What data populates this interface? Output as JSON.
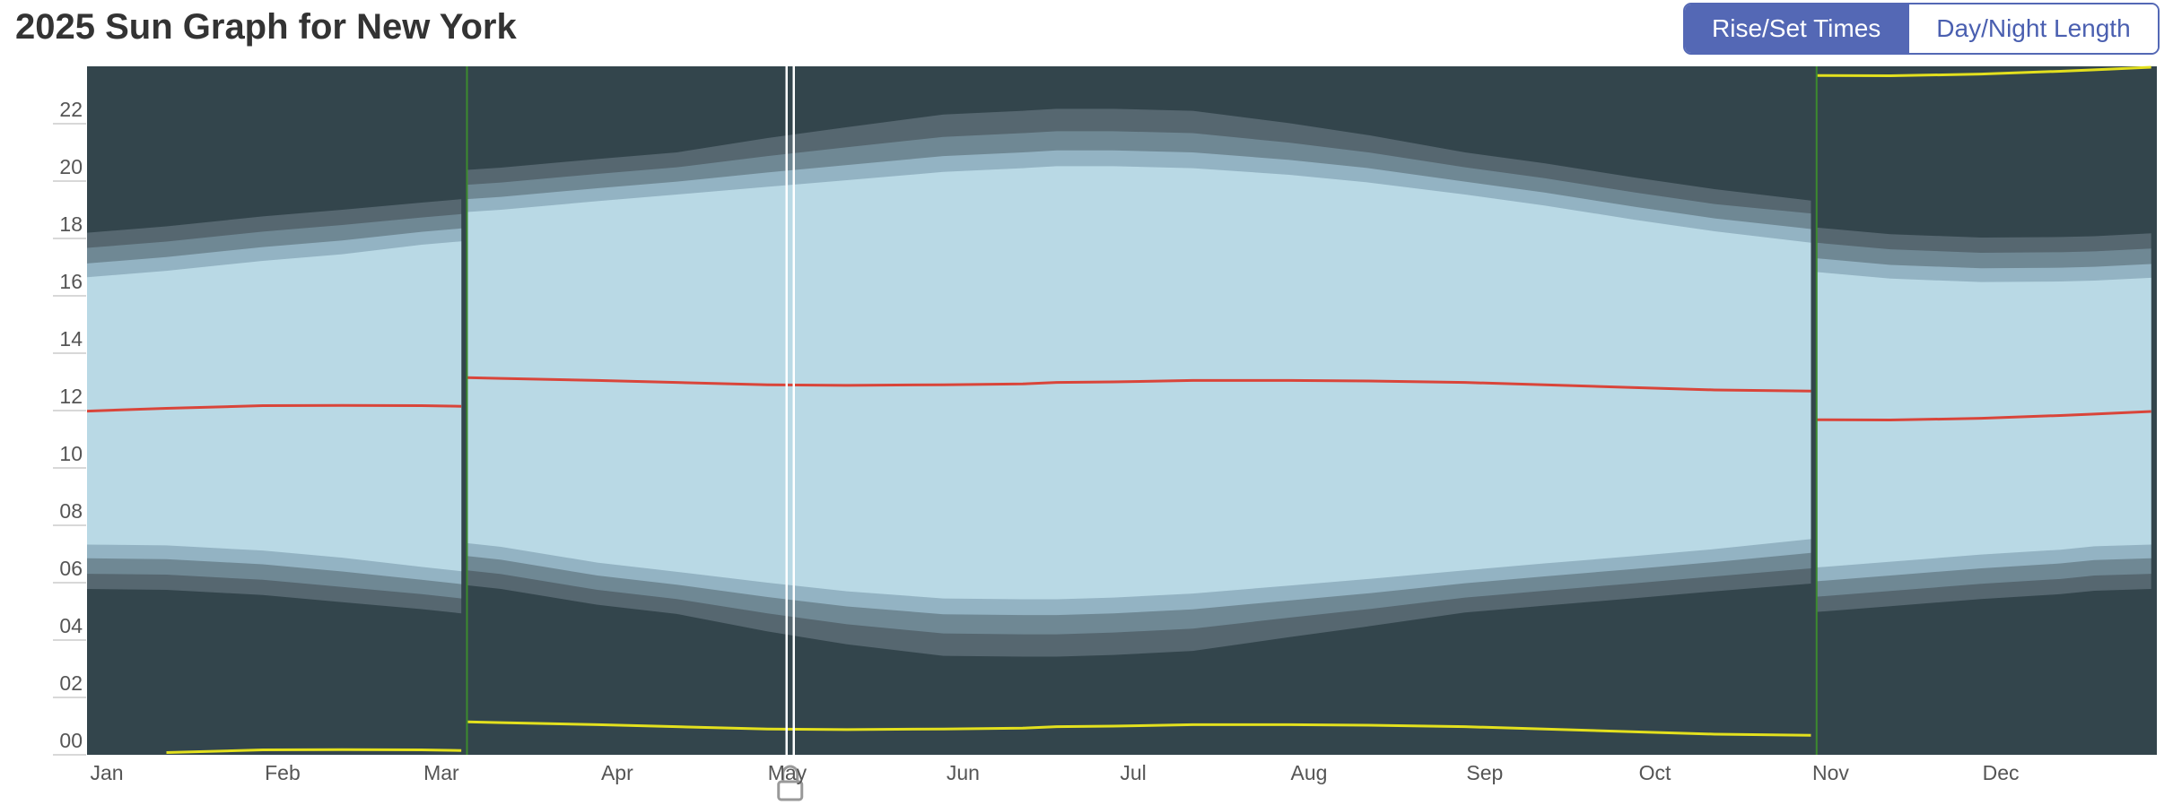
{
  "chart_data": {
    "type": "sunband",
    "title": "2025 Sun Graph for New York",
    "x": [
      1,
      15,
      32,
      46,
      60,
      67,
      68,
      74,
      91,
      105,
      121,
      135,
      152,
      166,
      172,
      182,
      196,
      213,
      227,
      244,
      258,
      274,
      288,
      305,
      306,
      319,
      335,
      349,
      355,
      365
    ],
    "xlim": [
      1,
      366
    ],
    "xticks": [
      {
        "value": 1,
        "label": "Jan"
      },
      {
        "value": 32,
        "label": "Feb"
      },
      {
        "value": 60,
        "label": "Mar"
      },
      {
        "value": 91,
        "label": "Apr"
      },
      {
        "value": 121,
        "label": "May"
      },
      {
        "value": 152,
        "label": "Jun"
      },
      {
        "value": 182,
        "label": "Jul"
      },
      {
        "value": 213,
        "label": "Aug"
      },
      {
        "value": 244,
        "label": "Sep"
      },
      {
        "value": 274,
        "label": "Oct"
      },
      {
        "value": 305,
        "label": "Nov"
      },
      {
        "value": 335,
        "label": "Dec"
      }
    ],
    "ylim": [
      0,
      24
    ],
    "yticks": [
      {
        "value": 0,
        "label": "00"
      },
      {
        "value": 2,
        "label": "02"
      },
      {
        "value": 4,
        "label": "04"
      },
      {
        "value": 6,
        "label": "06"
      },
      {
        "value": 8,
        "label": "08"
      },
      {
        "value": 10,
        "label": "10"
      },
      {
        "value": 12,
        "label": "12"
      },
      {
        "value": 14,
        "label": "14"
      },
      {
        "value": 16,
        "label": "16"
      },
      {
        "value": 18,
        "label": "18"
      },
      {
        "value": 20,
        "label": "20"
      },
      {
        "value": 22,
        "label": "22"
      }
    ],
    "night_color": "#33454c",
    "bands": [
      {
        "color": "#566770",
        "dawn": [
          5.78,
          5.75,
          5.57,
          5.32,
          5.08,
          4.93,
          5.91,
          5.78,
          5.23,
          4.91,
          4.3,
          3.85,
          3.45,
          3.42,
          3.42,
          3.48,
          3.62,
          4.1,
          4.48,
          4.96,
          5.2,
          5.46,
          5.7,
          5.97,
          4.98,
          5.18,
          5.43,
          5.6,
          5.72,
          5.78
        ],
        "dusk": [
          18.2,
          18.42,
          18.77,
          19.0,
          19.25,
          19.37,
          20.39,
          20.47,
          20.77,
          21.0,
          21.5,
          21.88,
          22.32,
          22.45,
          22.52,
          22.52,
          22.45,
          22.02,
          21.6,
          21.0,
          20.62,
          20.12,
          19.72,
          19.32,
          18.38,
          18.15,
          18.03,
          18.05,
          18.08,
          18.18
        ]
      },
      {
        "color": "#6f8894",
        "dawn": [
          6.31,
          6.28,
          6.1,
          5.85,
          5.6,
          5.45,
          6.43,
          6.3,
          5.75,
          5.43,
          4.93,
          4.55,
          4.23,
          4.2,
          4.2,
          4.26,
          4.4,
          4.78,
          5.08,
          5.48,
          5.72,
          5.98,
          6.22,
          6.5,
          5.51,
          5.71,
          5.96,
          6.13,
          6.25,
          6.31
        ],
        "dusk": [
          17.67,
          17.89,
          18.24,
          18.47,
          18.73,
          18.85,
          19.87,
          19.95,
          20.25,
          20.48,
          20.87,
          21.18,
          21.54,
          21.67,
          21.74,
          21.74,
          21.67,
          21.34,
          21.0,
          20.48,
          20.1,
          19.6,
          19.2,
          18.87,
          17.85,
          17.62,
          17.5,
          17.52,
          17.55,
          17.65
        ]
      },
      {
        "color": "#93b3c3",
        "dawn": [
          6.85,
          6.82,
          6.64,
          6.39,
          6.1,
          5.95,
          6.93,
          6.8,
          6.25,
          5.93,
          5.5,
          5.17,
          4.9,
          4.87,
          4.87,
          4.93,
          5.07,
          5.38,
          5.63,
          5.98,
          6.22,
          6.48,
          6.72,
          7.04,
          6.05,
          6.25,
          6.5,
          6.67,
          6.79,
          6.85
        ],
        "dusk": [
          17.13,
          17.35,
          17.7,
          17.93,
          18.23,
          18.35,
          19.37,
          19.45,
          19.75,
          19.98,
          20.3,
          20.56,
          20.87,
          21.0,
          21.07,
          21.07,
          21.0,
          20.74,
          20.45,
          19.98,
          19.6,
          19.1,
          18.7,
          18.33,
          17.31,
          17.08,
          16.96,
          16.98,
          17.01,
          17.11
        ]
      },
      {
        "color": "#b9d9e5",
        "dawn": [
          7.33,
          7.3,
          7.12,
          6.87,
          6.55,
          6.4,
          7.38,
          7.25,
          6.7,
          6.38,
          6.0,
          5.7,
          5.45,
          5.42,
          5.42,
          5.48,
          5.62,
          5.9,
          6.13,
          6.43,
          6.67,
          6.93,
          7.17,
          7.52,
          6.53,
          6.73,
          6.98,
          7.15,
          7.27,
          7.33
        ],
        "dusk": [
          16.65,
          16.87,
          17.22,
          17.45,
          17.78,
          17.9,
          18.92,
          19.0,
          19.3,
          19.53,
          19.8,
          20.03,
          20.32,
          20.45,
          20.52,
          20.52,
          20.45,
          20.22,
          19.95,
          19.53,
          19.15,
          18.65,
          18.25,
          17.85,
          16.83,
          16.6,
          16.48,
          16.5,
          16.53,
          16.63
        ]
      }
    ],
    "lines": [
      {
        "color": "#d9453a",
        "values": [
          11.98,
          12.08,
          12.17,
          12.18,
          12.17,
          12.15,
          13.15,
          13.12,
          13.05,
          12.98,
          12.9,
          12.88,
          12.9,
          12.93,
          12.98,
          13.0,
          13.05,
          13.05,
          13.03,
          12.98,
          12.9,
          12.8,
          12.72,
          12.68,
          11.68,
          11.67,
          11.73,
          11.83,
          11.88,
          11.97
        ]
      },
      {
        "color": "#e3e01e",
        "values": [
          null,
          0.08,
          0.17,
          0.18,
          0.17,
          0.15,
          1.15,
          1.12,
          1.05,
          0.98,
          0.9,
          0.88,
          0.9,
          0.93,
          0.98,
          1.0,
          1.05,
          1.05,
          1.03,
          0.98,
          0.9,
          0.8,
          0.72,
          0.68,
          23.68,
          23.67,
          23.73,
          23.83,
          23.88,
          23.97
        ]
      }
    ],
    "dst": [
      68,
      306
    ],
    "dst_color": "#3c8a2e",
    "today": 125
  },
  "toggle": {
    "options": [
      "Rise/Set Times",
      "Day/Night Length"
    ],
    "active": 0
  }
}
